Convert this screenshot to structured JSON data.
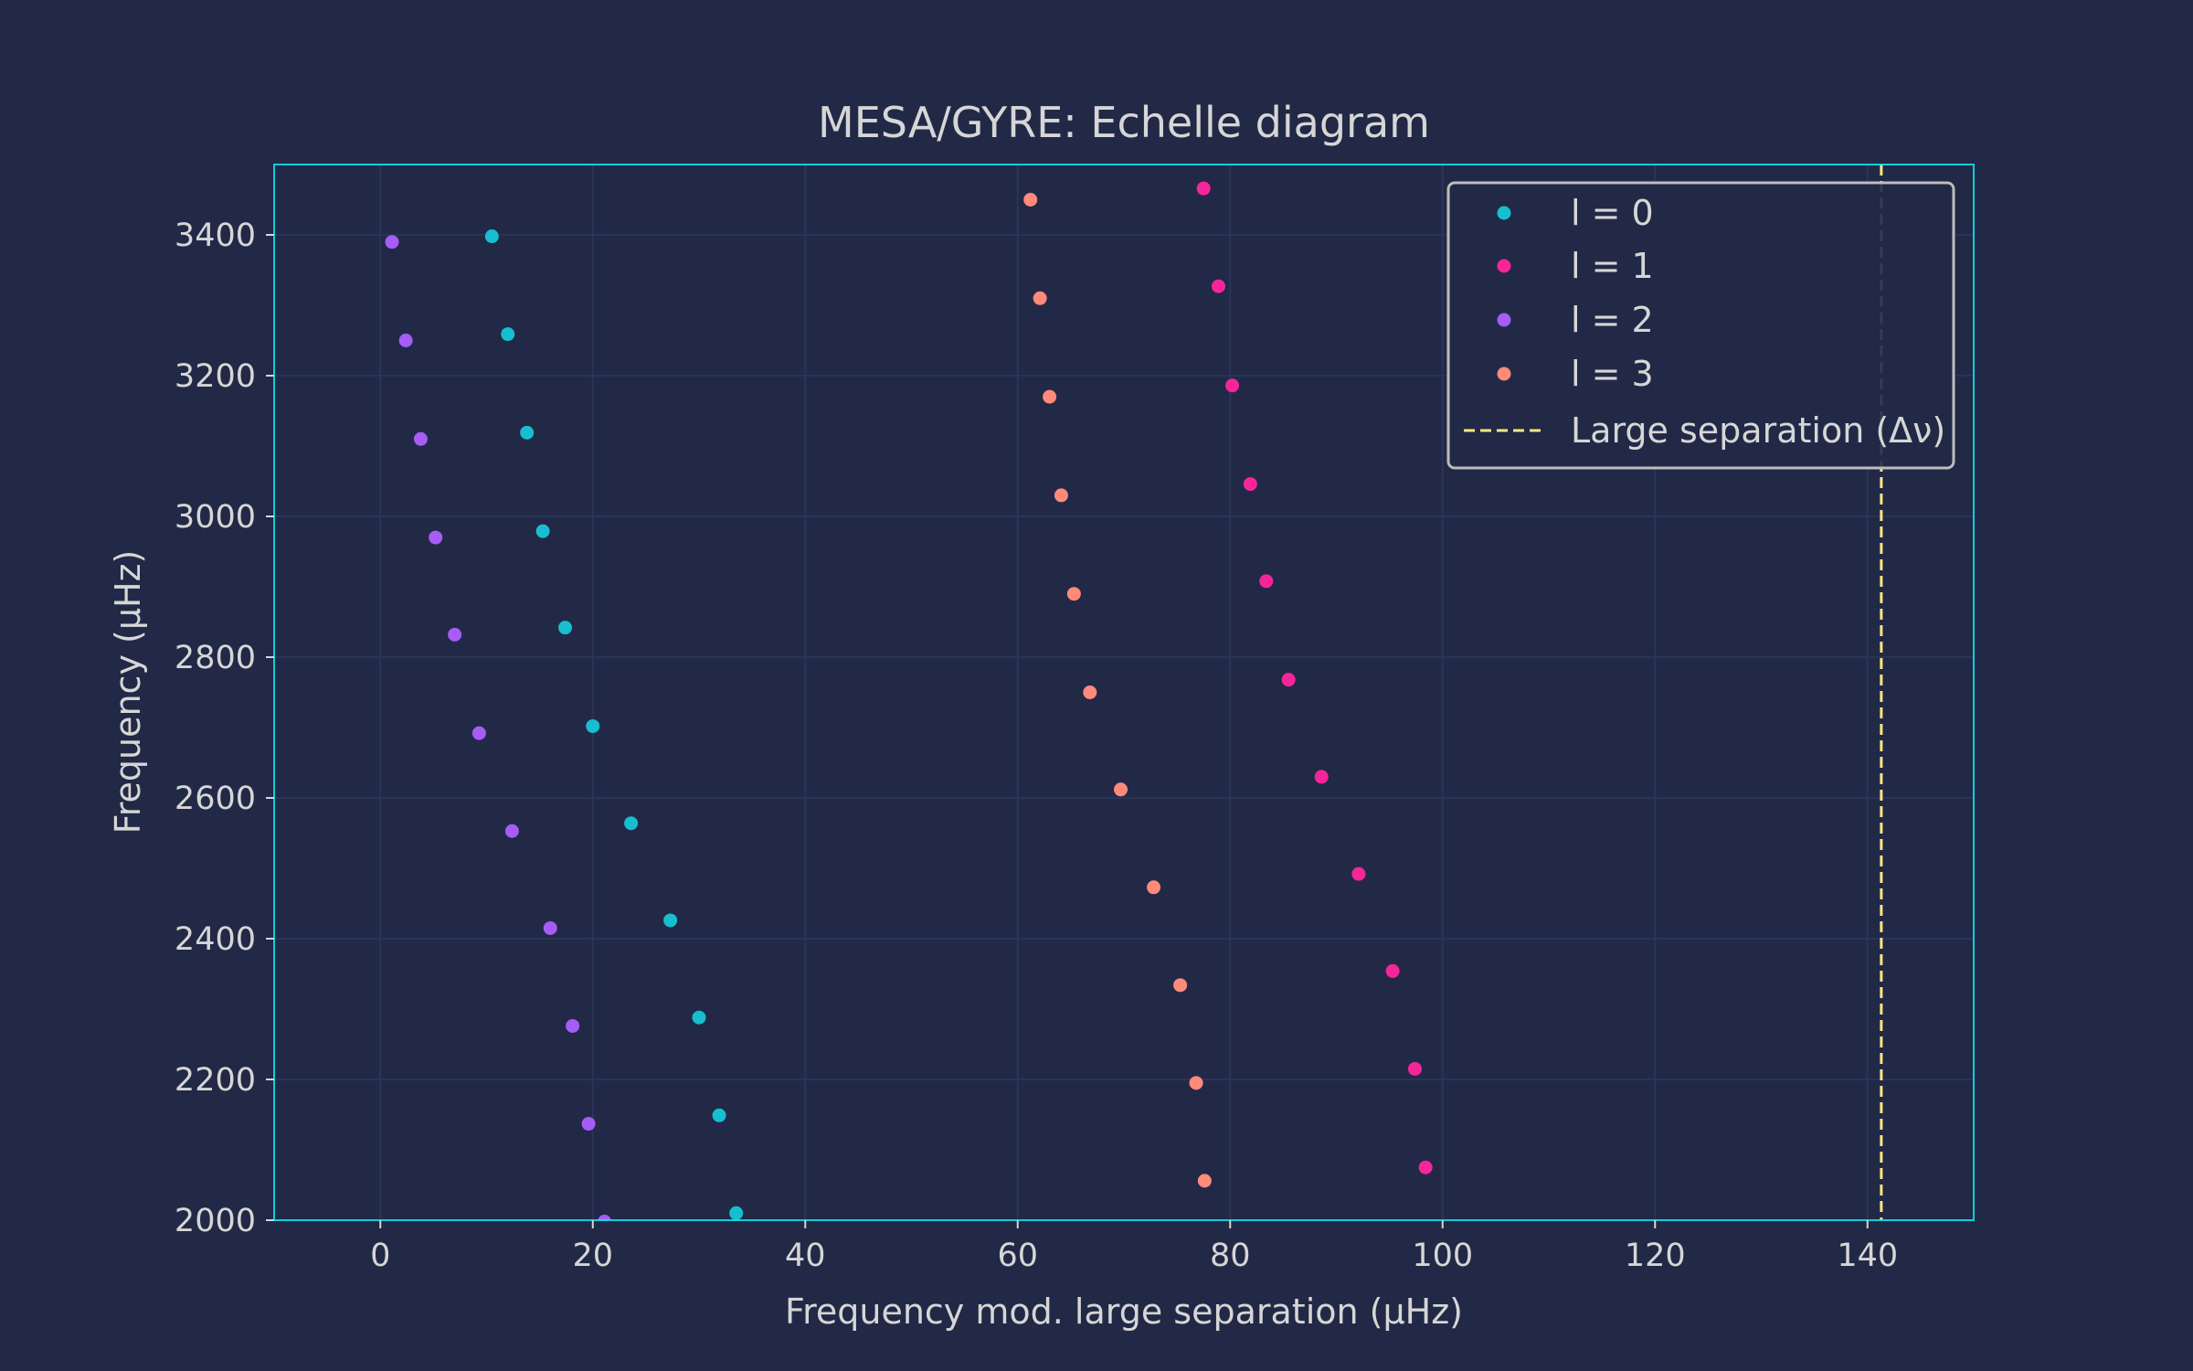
{
  "chart_data": {
    "type": "scatter",
    "title": "MESA/GYRE: Echelle diagram",
    "xlabel": "Frequency mod. large separation (μHz)",
    "ylabel": "Frequency (μHz)",
    "xlim": [
      -10,
      150
    ],
    "ylim": [
      2000,
      3500
    ],
    "xticks": [
      0,
      20,
      40,
      60,
      80,
      100,
      120,
      140
    ],
    "yticks": [
      2000,
      2200,
      2400,
      2600,
      2800,
      3000,
      3200,
      3400
    ],
    "grid": true,
    "legend_position": "top-right",
    "colors": {
      "background": "#212946",
      "grid": "#2A3459",
      "axes_edge": "#08F7FE",
      "text": "#D6D6D6",
      "legend_edge": "#BDBDBD"
    },
    "series": [
      {
        "name": "l = 0",
        "color": "#17BECF",
        "points": [
          [
            10.5,
            3398
          ],
          [
            12.0,
            3259
          ],
          [
            13.8,
            3119
          ],
          [
            15.3,
            2979
          ],
          [
            17.4,
            2842
          ],
          [
            20.0,
            2702
          ],
          [
            23.6,
            2564
          ],
          [
            27.3,
            2426
          ],
          [
            30.0,
            2288
          ],
          [
            31.9,
            2149
          ],
          [
            33.5,
            2010
          ]
        ]
      },
      {
        "name": "l = 1",
        "color": "#F7259A",
        "points": [
          [
            77.5,
            3466
          ],
          [
            78.9,
            3327
          ],
          [
            80.2,
            3186
          ],
          [
            81.9,
            3046
          ],
          [
            83.4,
            2908
          ],
          [
            85.5,
            2768
          ],
          [
            88.6,
            2630
          ],
          [
            92.1,
            2492
          ],
          [
            95.3,
            2354
          ],
          [
            97.4,
            2215
          ],
          [
            98.4,
            2075
          ]
        ]
      },
      {
        "name": "l = 2",
        "color": "#A55DF5",
        "points": [
          [
            1.1,
            3390
          ],
          [
            2.4,
            3250
          ],
          [
            3.8,
            3110
          ],
          [
            5.2,
            2970
          ],
          [
            7.0,
            2832
          ],
          [
            9.3,
            2692
          ],
          [
            12.4,
            2553
          ],
          [
            16.0,
            2415
          ],
          [
            18.1,
            2276
          ],
          [
            19.6,
            2137
          ],
          [
            21.1,
            1998
          ]
        ]
      },
      {
        "name": "l = 3",
        "color": "#FF8A7A",
        "points": [
          [
            61.2,
            3450
          ],
          [
            62.1,
            3310
          ],
          [
            63.0,
            3170
          ],
          [
            64.1,
            3030
          ],
          [
            65.3,
            2890
          ],
          [
            66.8,
            2750
          ],
          [
            69.7,
            2612
          ],
          [
            72.8,
            2473
          ],
          [
            75.3,
            2334
          ],
          [
            76.8,
            2195
          ],
          [
            77.6,
            2056
          ]
        ]
      }
    ],
    "vline": {
      "name": "Large separation (Δν)",
      "x": 141.3,
      "color": "#FFE680",
      "style": "dashed"
    }
  }
}
